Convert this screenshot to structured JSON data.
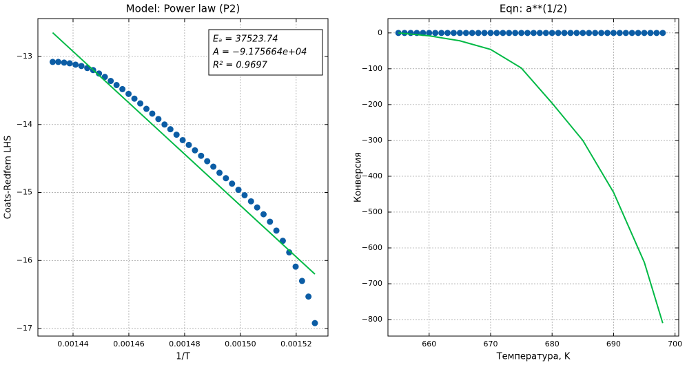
{
  "chart_data": [
    {
      "type": "scatter",
      "title": "Model: Power law (P2)",
      "x_label": "1/T",
      "y_label": "Coats-Redfern LHS",
      "annotations": [
        "Eₐ = 37523.74",
        "A = −9.175664e+04",
        "R² = 0.9697"
      ],
      "xlim": [
        0.0014274,
        0.0015314
      ],
      "ylim": [
        -12.443,
        -17.111
      ],
      "xticks": [
        0.00144,
        0.00146,
        0.00148,
        {
          "value": 0.0015,
          "label": "0.00150"
        },
        0.00152
      ],
      "yticks": [
        {
          "value": -13,
          "label": "−13"
        },
        {
          "value": -14,
          "label": "−14"
        },
        {
          "value": -15,
          "label": "−15"
        },
        {
          "value": -16,
          "label": "−16"
        },
        {
          "value": -17,
          "label": "−17"
        }
      ],
      "grid": true,
      "series": [
        {
          "mode": "markers",
          "color": "#0c5da5",
          "x": [
            0.0014327,
            0.0014347,
            0.0014368,
            0.0014388,
            0.0014409,
            0.001443,
            0.0014451,
            0.0014472,
            0.0014493,
            0.0014514,
            0.0014535,
            0.0014556,
            0.0014577,
            0.0014599,
            0.001462,
            0.0014641,
            0.0014663,
            0.0014684,
            0.0014706,
            0.0014728,
            0.0014749,
            0.0014771,
            0.0014793,
            0.0014815,
            0.0014837,
            0.0014859,
            0.0014881,
            0.0014903,
            0.0014925,
            0.0014948,
            0.001497,
            0.0014993,
            0.0015015,
            0.0015038,
            0.001506,
            0.0015083,
            0.0015106,
            0.0015129,
            0.0015152,
            0.0015175,
            0.0015198,
            0.0015221,
            0.0015244,
            0.0015267
          ],
          "values": [
            -13.08,
            -13.08,
            -13.09,
            -13.1,
            -13.12,
            -13.14,
            -13.17,
            -13.2,
            -13.25,
            -13.3,
            -13.36,
            -13.42,
            -13.48,
            -13.55,
            -13.62,
            -13.69,
            -13.77,
            -13.84,
            -13.92,
            -14.0,
            -14.07,
            -14.15,
            -14.23,
            -14.3,
            -14.38,
            -14.46,
            -14.54,
            -14.62,
            -14.71,
            -14.79,
            -14.87,
            -14.96,
            -15.04,
            -15.13,
            -15.22,
            -15.32,
            -15.43,
            -15.56,
            -15.71,
            -15.88,
            -16.09,
            -16.3,
            -16.53,
            -16.92
          ]
        },
        {
          "mode": "line",
          "color": "#00b945",
          "x": [
            0.0014327,
            0.0015267
          ],
          "values": [
            -12.65,
            -16.2
          ]
        }
      ]
    },
    {
      "type": "scatter",
      "title": "Eqn: a**(1/2)",
      "x_label": "Температура, K",
      "y_label": "Конверсия",
      "xlim": [
        653.3,
        700.6
      ],
      "ylim": [
        40,
        -846
      ],
      "xticks": [
        660,
        670,
        680,
        690,
        700
      ],
      "yticks": [
        0,
        {
          "value": -100,
          "label": "−100"
        },
        {
          "value": -200,
          "label": "−200"
        },
        {
          "value": -300,
          "label": "−300"
        },
        {
          "value": -400,
          "label": "−400"
        },
        {
          "value": -500,
          "label": "−500"
        },
        {
          "value": -600,
          "label": "−600"
        },
        {
          "value": -700,
          "label": "−700"
        },
        {
          "value": -800,
          "label": "−800"
        }
      ],
      "grid": true,
      "series": [
        {
          "mode": "markers",
          "color": "#0c5da5",
          "x": [
            655,
            656,
            657,
            658,
            659,
            660,
            661,
            662,
            663,
            664,
            665,
            666,
            667,
            668,
            669,
            670,
            671,
            672,
            673,
            674,
            675,
            676,
            677,
            678,
            679,
            680,
            681,
            682,
            683,
            684,
            685,
            686,
            687,
            688,
            689,
            690,
            691,
            692,
            693,
            694,
            695,
            696,
            697,
            698
          ],
          "values": [
            0,
            0,
            0,
            0,
            0,
            0,
            0,
            0,
            0,
            0,
            0,
            0,
            0,
            0,
            0,
            0,
            0,
            0,
            0,
            0,
            0,
            0,
            0,
            0,
            0,
            0,
            0,
            0,
            0,
            0,
            0,
            0,
            0,
            0,
            0,
            0,
            0,
            0,
            0,
            0,
            0,
            0,
            0,
            0
          ]
        },
        {
          "mode": "line",
          "color": "#00b945",
          "x": [
            655,
            660,
            665,
            670,
            675,
            680,
            685,
            690,
            695,
            698
          ],
          "values": [
            0,
            -8,
            -22,
            -46,
            -98,
            -196,
            -300,
            -445,
            -640,
            -810
          ]
        }
      ]
    }
  ]
}
